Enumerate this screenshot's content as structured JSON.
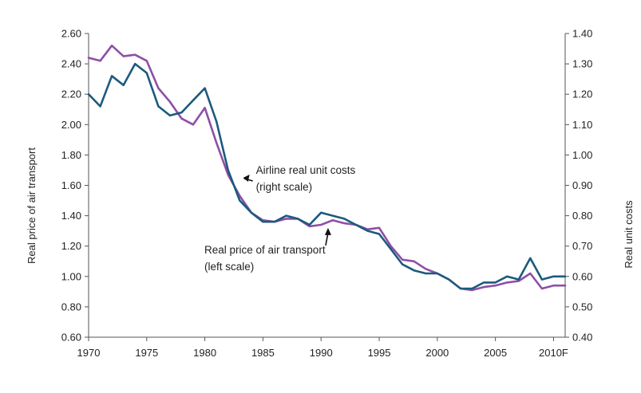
{
  "chart_data": {
    "type": "line",
    "title": "",
    "xlabel": "",
    "ylabel_left": "Real price of air transport",
    "ylabel_right": "Real unit costs",
    "xlim": [
      1970,
      2011
    ],
    "ylim_left": [
      0.6,
      2.6
    ],
    "ylim_right": [
      0.4,
      1.4
    ],
    "grid": false,
    "legend": "none",
    "x_ticks": [
      {
        "value": 1970,
        "label": "1970"
      },
      {
        "value": 1975,
        "label": "1975"
      },
      {
        "value": 1980,
        "label": "1980"
      },
      {
        "value": 1985,
        "label": "1985"
      },
      {
        "value": 1990,
        "label": "1990"
      },
      {
        "value": 1995,
        "label": "1995"
      },
      {
        "value": 2000,
        "label": "2000"
      },
      {
        "value": 2005,
        "label": "2005"
      },
      {
        "value": 2010,
        "label": "2010F"
      }
    ],
    "y_left_ticks": [
      "0.60",
      "0.80",
      "1.00",
      "1.20",
      "1.40",
      "1.60",
      "1.80",
      "2.00",
      "2.20",
      "2.40",
      "2.60"
    ],
    "y_right_ticks": [
      "0.40",
      "0.50",
      "0.60",
      "0.70",
      "0.80",
      "0.90",
      "1.00",
      "1.10",
      "1.20",
      "1.30",
      "1.40"
    ],
    "x": [
      1970,
      1971,
      1972,
      1973,
      1974,
      1975,
      1976,
      1977,
      1978,
      1979,
      1980,
      1981,
      1982,
      1983,
      1984,
      1985,
      1986,
      1987,
      1988,
      1989,
      1990,
      1991,
      1992,
      1993,
      1994,
      1995,
      1996,
      1997,
      1998,
      1999,
      2000,
      2001,
      2002,
      2003,
      2004,
      2005,
      2006,
      2007,
      2008,
      2009,
      2010,
      2011
    ],
    "series": [
      {
        "name": "Real price of air transport (left scale)",
        "axis": "left",
        "color": "#8e4fa6",
        "values": [
          2.44,
          2.42,
          2.52,
          2.45,
          2.46,
          2.42,
          2.24,
          2.15,
          2.04,
          2.0,
          2.11,
          1.88,
          1.67,
          1.53,
          1.42,
          1.37,
          1.36,
          1.38,
          1.38,
          1.33,
          1.34,
          1.37,
          1.35,
          1.34,
          1.31,
          1.32,
          1.2,
          1.11,
          1.1,
          1.05,
          1.02,
          0.98,
          0.92,
          0.91,
          0.93,
          0.94,
          0.96,
          0.97,
          1.02,
          0.92,
          0.94,
          0.94
        ]
      },
      {
        "name": "Airline real unit costs (right scale)",
        "axis": "right",
        "color": "#1c5a7e",
        "values": [
          1.2,
          1.16,
          1.26,
          1.23,
          1.3,
          1.27,
          1.16,
          1.13,
          1.14,
          1.18,
          1.22,
          1.11,
          0.95,
          0.85,
          0.81,
          0.78,
          0.78,
          0.8,
          0.79,
          0.77,
          0.81,
          0.8,
          0.79,
          0.77,
          0.75,
          0.74,
          0.69,
          0.64,
          0.62,
          0.61,
          0.61,
          0.59,
          0.56,
          0.56,
          0.58,
          0.58,
          0.6,
          0.59,
          0.66,
          0.59,
          0.6,
          0.6
        ]
      }
    ],
    "annotations": [
      {
        "series": 1,
        "lines": [
          "Airline real unit costs",
          "(right scale)"
        ],
        "arrow_x": 1983.3,
        "arrow_y": 1.65
      },
      {
        "series": 0,
        "lines": [
          "Real price of air transport",
          "(left scale)"
        ],
        "arrow_x": 1990.6,
        "arrow_y": 1.32
      }
    ]
  }
}
